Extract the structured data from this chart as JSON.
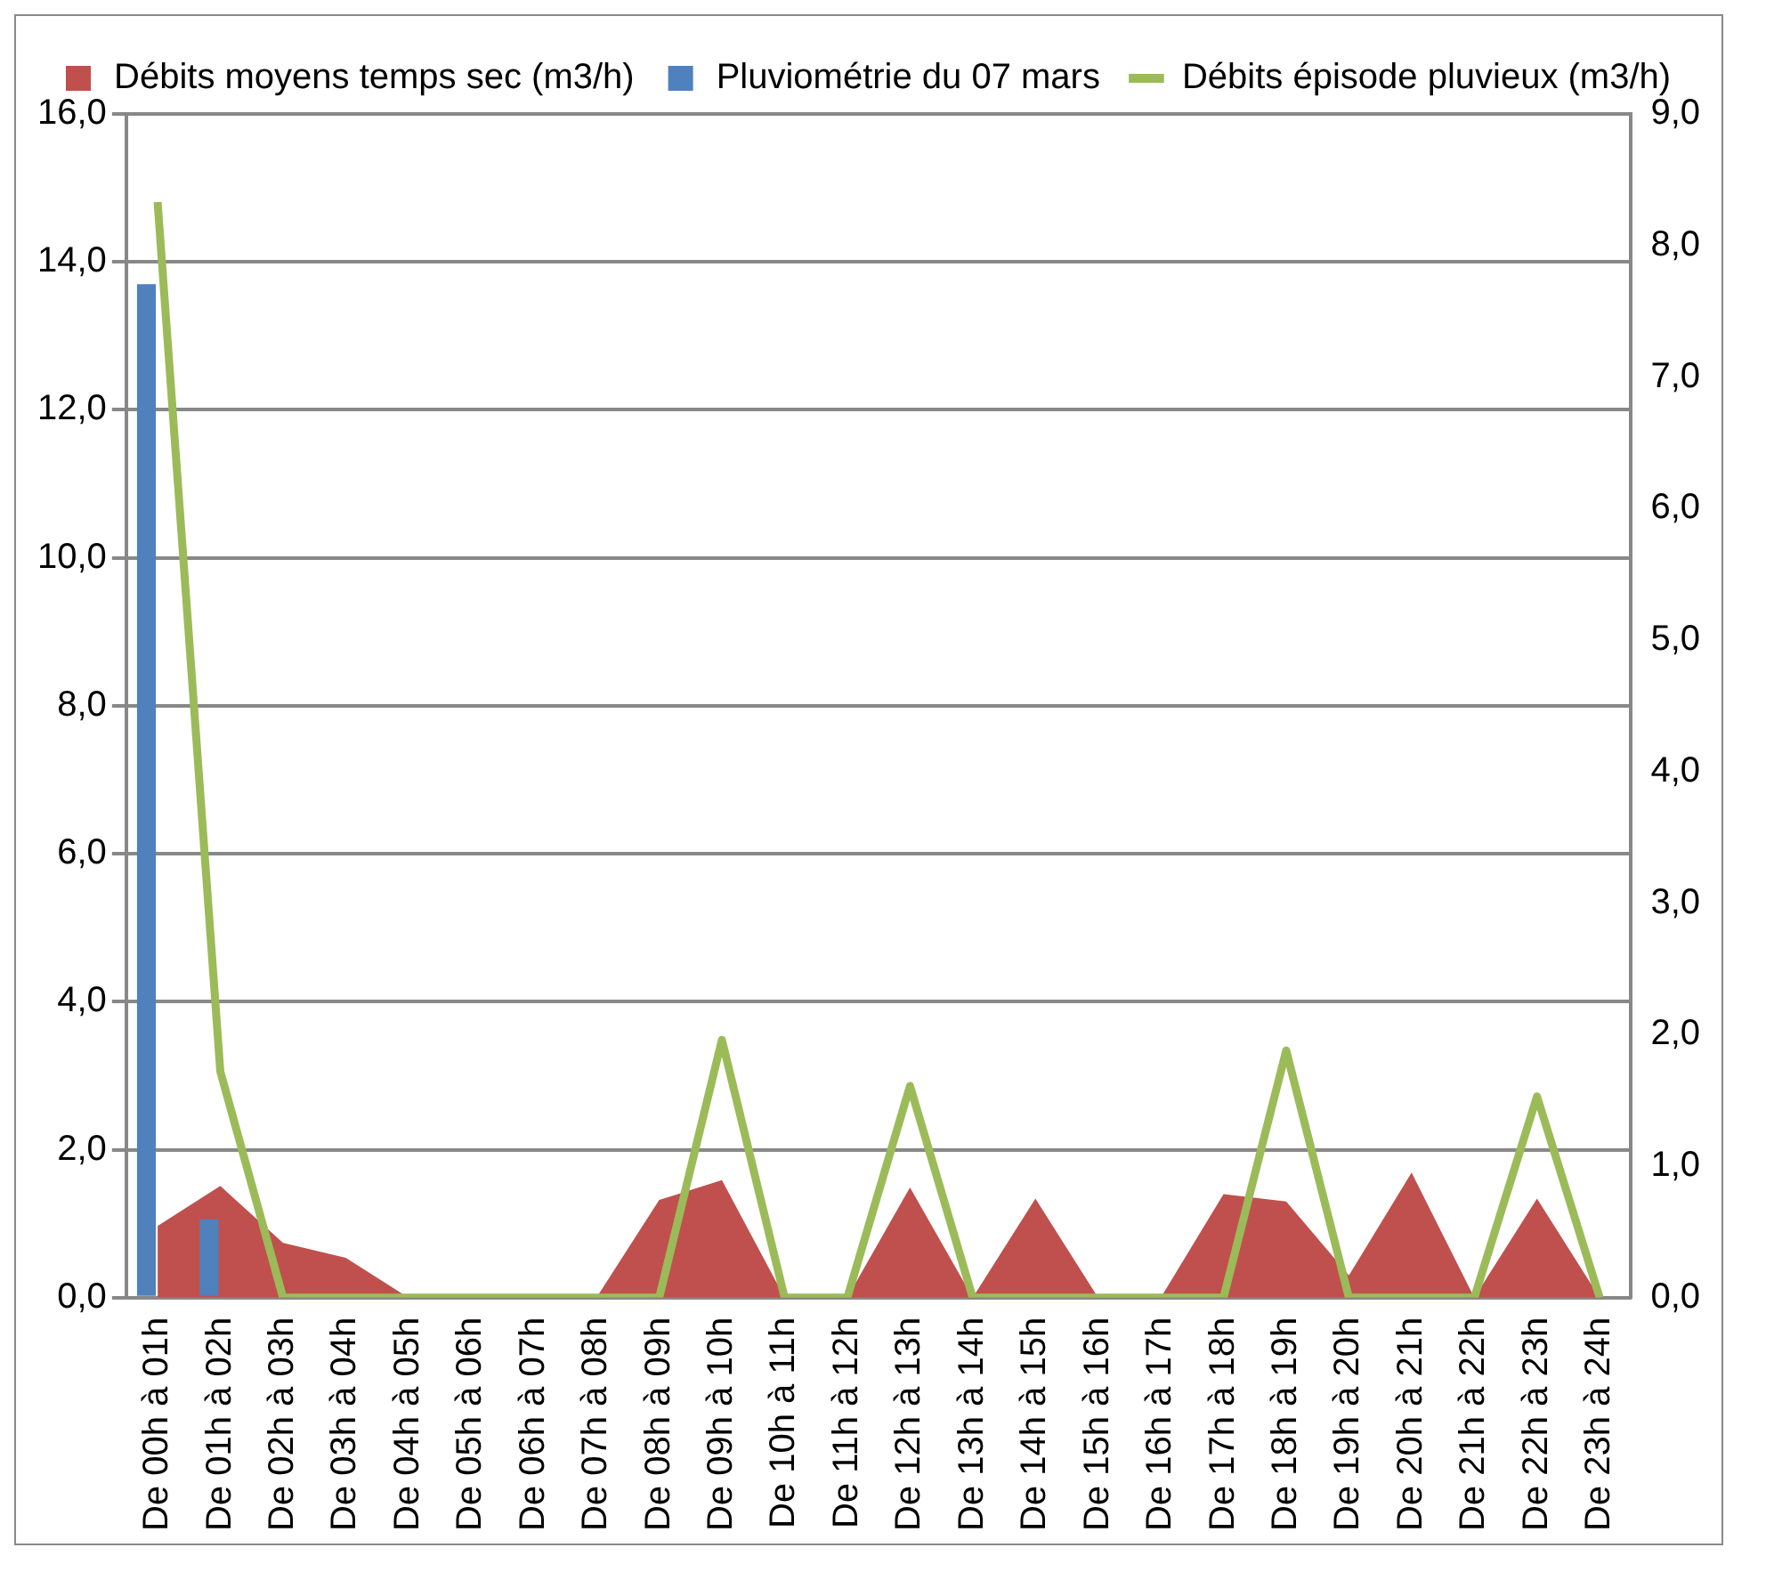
{
  "chart_data": {
    "type": "bar",
    "categories": [
      "De 00h à 01h",
      "De 01h à 02h",
      "De 02h à 03h",
      "De 03h à 04h",
      "De 04h à 05h",
      "De 05h à 06h",
      "De 06h à 07h",
      "De 07h à 08h",
      "De 08h à 09h",
      "De 09h à 10h",
      "De 10h à 11h",
      "De 11h à 12h",
      "De 12h à 13h",
      "De 13h à 14h",
      "De 14h à 15h",
      "De 15h à 16h",
      "De 16h à 17h",
      "De 17h à 18h",
      "De 18h à 19h",
      "De 19h à 20h",
      "De 20h à 21h",
      "De 21h à 22h",
      "De 22h à 23h",
      "De 23h à 24h"
    ],
    "series": [
      {
        "name": "Débits moyens temps sec (m3/h)",
        "type": "area",
        "color": "#c0504d",
        "values": [
          0.97,
          1.51,
          0.74,
          0.54,
          0,
          0,
          0,
          0,
          1.32,
          1.59,
          0,
          0,
          1.49,
          0,
          1.34,
          0,
          0,
          1.4,
          1.3,
          0.3,
          1.69,
          0,
          1.34,
          0
        ]
      },
      {
        "name": "Pluviométrie du 07 mars",
        "color": "#4f81bd",
        "values": [
          13.7,
          1.06,
          0,
          0,
          0,
          0,
          0,
          0,
          0,
          0,
          0,
          0,
          0,
          0,
          0,
          0,
          0,
          0,
          0,
          0,
          0,
          0,
          0,
          0
        ]
      },
      {
        "name": "Débits épisode pluvieux (m3/h)",
        "type": "line",
        "axis": "y2",
        "color": "#9bbb59",
        "values": [
          8.33,
          1.72,
          0,
          0,
          0,
          0,
          0,
          0,
          0,
          1.96,
          0,
          0,
          1.61,
          0,
          0,
          0,
          0,
          0,
          1.88,
          0,
          0,
          0,
          1.53,
          0
        ]
      }
    ],
    "ylim": [
      0,
      16
    ],
    "yticks": [
      {
        "value": 0,
        "label": "0,0"
      },
      {
        "value": 2,
        "label": "2,0"
      },
      {
        "value": 4,
        "label": "4,0"
      },
      {
        "value": 6,
        "label": "6,0"
      },
      {
        "value": 8,
        "label": "8,0"
      },
      {
        "value": 10,
        "label": "10,0"
      },
      {
        "value": 12,
        "label": "12,0"
      },
      {
        "value": 14,
        "label": "14,0"
      },
      {
        "value": 16,
        "label": "16,0"
      }
    ],
    "y2lim": [
      0,
      9
    ],
    "y2ticks": [
      {
        "value": 0,
        "label": "0,0"
      },
      {
        "value": 1,
        "label": "1,0"
      },
      {
        "value": 2,
        "label": "2,0"
      },
      {
        "value": 3,
        "label": "3,0"
      },
      {
        "value": 4,
        "label": "4,0"
      },
      {
        "value": 5,
        "label": "5,0"
      },
      {
        "value": 6,
        "label": "6,0"
      },
      {
        "value": 7,
        "label": "7,0"
      },
      {
        "value": 8,
        "label": "8,0"
      },
      {
        "value": 9,
        "label": "9,0"
      }
    ],
    "grid": "y",
    "legend": "top",
    "marker": "none",
    "line_style": "solid"
  }
}
